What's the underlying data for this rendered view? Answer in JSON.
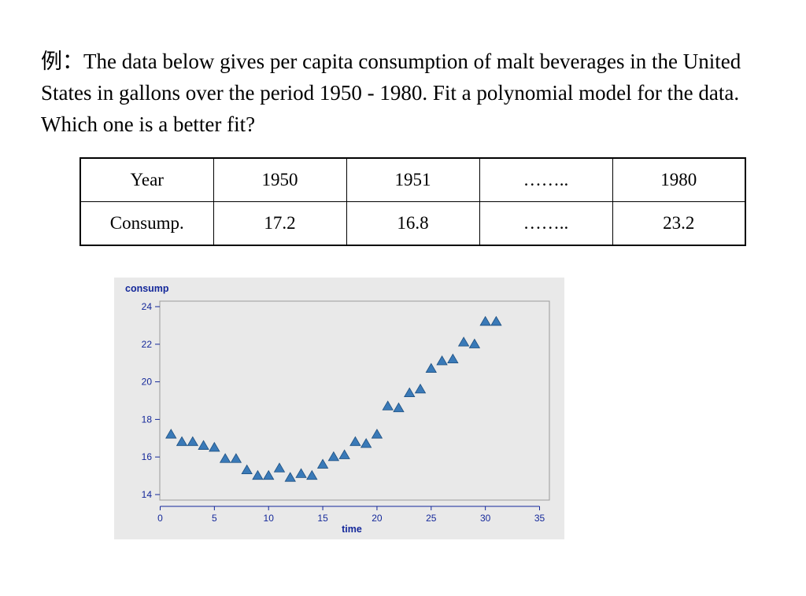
{
  "problem": {
    "prefix": "例：",
    "text": "The data below gives per capita consumption of malt beverages in the United States in gallons over the period 1950 - 1980.  Fit a polynomial model for the data.  Which one is a better fit?"
  },
  "table": {
    "rows": [
      [
        "Year",
        "1950",
        "1951",
        "……..",
        "1980"
      ],
      [
        "Consump.",
        "17.2",
        "16.8",
        "……..",
        "23.2"
      ]
    ]
  },
  "chart_data": {
    "type": "scatter",
    "title": "",
    "ylabel": "consump",
    "xlabel": "time",
    "xlim": [
      0,
      35
    ],
    "ylim": [
      14,
      24
    ],
    "xticks": [
      0,
      5,
      10,
      15,
      20,
      25,
      30,
      35
    ],
    "yticks": [
      14,
      16,
      18,
      20,
      22,
      24
    ],
    "marker": "triangle",
    "marker_color": "#3a7ab8",
    "background": "#e9e9e9",
    "grid": false,
    "x": [
      1,
      2,
      3,
      4,
      5,
      6,
      7,
      8,
      9,
      10,
      11,
      12,
      13,
      14,
      15,
      16,
      17,
      18,
      19,
      20,
      21,
      22,
      23,
      24,
      25,
      26,
      27,
      28,
      29,
      30,
      31
    ],
    "y": [
      17.2,
      16.8,
      16.8,
      16.6,
      16.5,
      15.9,
      15.9,
      15.3,
      15.0,
      15.0,
      15.4,
      14.9,
      15.1,
      15.0,
      15.6,
      16.0,
      16.1,
      16.8,
      16.7,
      17.2,
      18.7,
      18.6,
      19.4,
      19.6,
      20.7,
      21.1,
      21.2,
      22.1,
      22.0,
      23.2,
      23.2
    ]
  }
}
